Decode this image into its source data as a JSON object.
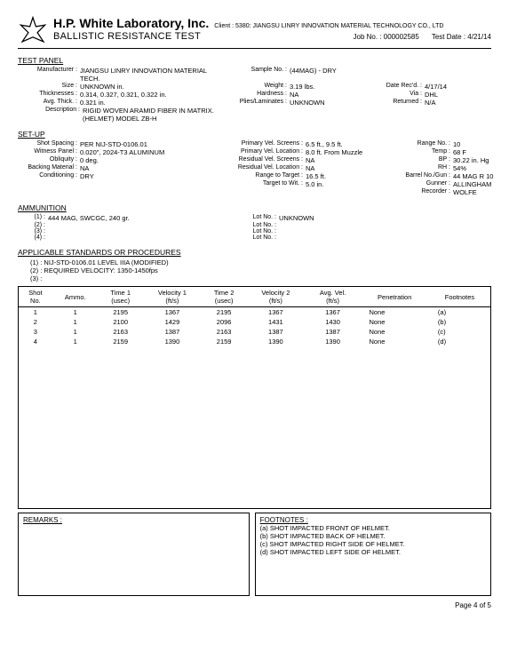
{
  "header": {
    "company": "H.P. White Laboratory, Inc.",
    "client": "Client : 5380: JIANGSU LINRY INNOVATION MATERIAL TECHNOLOGY CO., LTD",
    "subtitle": "BALLISTIC RESISTANCE TEST",
    "jobno_label": "Job No. :",
    "jobno": "000002585",
    "testdate_label": "Test Date :",
    "testdate": "4/21/14"
  },
  "test_panel": {
    "title": "TEST PANEL",
    "rows": [
      [
        "Manufacturer :",
        "JIANGSU LINRY INNOVATION MATERIAL TECH.",
        "Sample No. :",
        "(44MAG) - DRY",
        "",
        ""
      ],
      [
        "Size :",
        "UNKNOWN in.",
        "Weight :",
        "3.19 lbs.",
        "Date Rec'd. :",
        "4/17/14"
      ],
      [
        "Thicknesses :",
        "0.314, 0.327, 0.321, 0.322 in.",
        "Hardness :",
        "NA",
        "Via :",
        "DHL"
      ],
      [
        "Avg. Thick. :",
        "0.321 in.",
        "Plies/Laminates :",
        "UNKNOWN",
        "Returned :",
        "N/A"
      ]
    ],
    "desc_label": "Description :",
    "desc1": "RIGID WOVEN ARAMID FIBER IN MATRIX.",
    "desc2": "(HELMET) MODEL ZB-H"
  },
  "setup": {
    "title": "SET-UP",
    "rows": [
      [
        "Shot Spacing :",
        "PER NIJ-STD-0106.01",
        "Primary Vel. Screens :",
        "6.5 ft., 9.5 ft.",
        "Range No. :",
        "10"
      ],
      [
        "Witness Panel :",
        "0.020\", 2024-T3 ALUMINUM",
        "Primary Vel. Location :",
        "8.0 ft. From Muzzle",
        "Temp :",
        "68 F"
      ],
      [
        "Obliquity :",
        "0 deg.",
        "Residual Vel. Screens :",
        "NA",
        "BP :",
        "30.22 in. Hg"
      ],
      [
        "Backing Material :",
        "NA",
        "Residual Vel. Location :",
        "NA",
        "RH :",
        "54%"
      ],
      [
        "Conditioning :",
        "DRY",
        "Range to Target :",
        "16.5 ft.",
        "Barrel No./Gun :",
        "44 MAG R 10"
      ],
      [
        "",
        "",
        "Target to Wit. :",
        "5.0 in.",
        "Gunner :",
        "ALLINGHAM"
      ],
      [
        "",
        "",
        "",
        "",
        "Recorder :",
        "WOLFE"
      ]
    ]
  },
  "ammo": {
    "title": "AMMUNITION",
    "rows": [
      [
        "(1) :",
        "444 MAG, SWCGC, 240 gr.",
        "Lot No. :",
        "UNKNOWN"
      ],
      [
        "(2) :",
        "",
        "Lot No. :",
        ""
      ],
      [
        "(3) :",
        "",
        "Lot No. :",
        ""
      ],
      [
        "(4) :",
        "",
        "Lot No. :",
        ""
      ]
    ]
  },
  "standards": {
    "title": "APPLICABLE STANDARDS OR PROCEDURES",
    "items": [
      "(1) : NIJ-STD-0106.01 LEVEL IIIA (MODIFIED)",
      "(2) : REQUIRED VELOCITY: 1350-1450fps",
      "(3) :"
    ]
  },
  "table": {
    "headers": [
      "Shot\nNo.",
      "Ammo.",
      "Time 1\n(usec)",
      "Velocity 1\n(ft/s)",
      "Time 2\n(usec)",
      "Velocity 2\n(ft/s)",
      "Avg. Vel.\n(ft/s)",
      "Penetration",
      "Footnotes"
    ],
    "rows": [
      [
        "1",
        "1",
        "2195",
        "1367",
        "2195",
        "1367",
        "1367",
        "None",
        "(a)"
      ],
      [
        "2",
        "1",
        "2100",
        "1429",
        "2096",
        "1431",
        "1430",
        "None",
        "(b)"
      ],
      [
        "3",
        "1",
        "2163",
        "1387",
        "2163",
        "1387",
        "1387",
        "None",
        "(c)"
      ],
      [
        "4",
        "1",
        "2159",
        "1390",
        "2159",
        "1390",
        "1390",
        "None",
        "(d)"
      ]
    ]
  },
  "remarks_title": "REMARKS :",
  "footnotes": {
    "title": "FOOTNOTES :",
    "lines": [
      "(a) SHOT IMPACTED FRONT OF HELMET.",
      "(b) SHOT IMPACTED BACK OF HELMET.",
      "(c) SHOT IMPACTED RIGHT SIDE OF HELMET.",
      "(d) SHOT IMPACTED LEFT SIDE OF HELMET."
    ]
  },
  "pager": "Page 4 of 5"
}
